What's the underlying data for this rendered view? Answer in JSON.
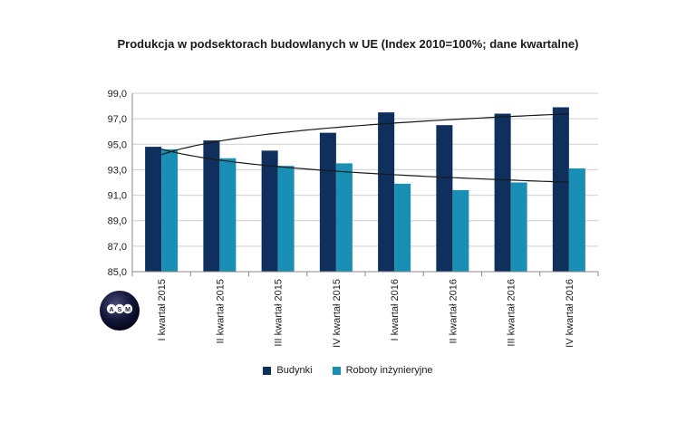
{
  "chart_data": {
    "type": "bar",
    "title": "Produkcja w podsektorach budowlanych w UE (Index 2010=100%; dane kwartalne)",
    "categories": [
      "I kwartał 2015",
      "II kwartał 2015",
      "III kwartał 2015",
      "IV kwartał 2015",
      "I kwartał 2016",
      "II kwartał 2016",
      "III kwartał 2016",
      "IV kwartał 2016"
    ],
    "series": [
      {
        "name": "Budynki",
        "color": "#0f2f5c",
        "values": [
          94.8,
          95.3,
          94.5,
          95.9,
          97.5,
          96.5,
          97.4,
          97.9
        ]
      },
      {
        "name": "Roboty inżynieryjne",
        "color": "#1a8fb5",
        "values": [
          94.6,
          93.9,
          93.3,
          93.5,
          91.9,
          91.4,
          92.0,
          93.1
        ]
      }
    ],
    "trendlines": [
      {
        "series": "Budynki",
        "type": "logarithmic"
      },
      {
        "series": "Roboty inżynieryjne",
        "type": "logarithmic"
      }
    ],
    "ylim": [
      85.0,
      99.0
    ],
    "yticks": [
      "85,0",
      "87,0",
      "89,0",
      "91,0",
      "93,0",
      "95,0",
      "97,0",
      "99,0"
    ],
    "grid": true,
    "legend": "bottom"
  },
  "logo": {
    "icon": "asm-logo",
    "text": "ASM"
  }
}
